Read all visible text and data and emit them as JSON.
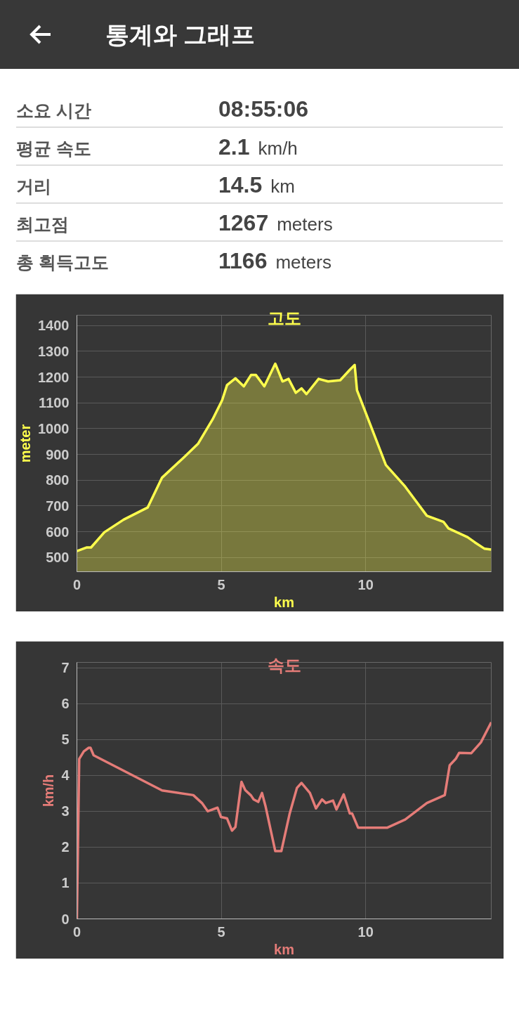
{
  "chart_data": [
    {
      "type": "other",
      "title": "통계와 그래프",
      "annotations": [
        "소요 시간",
        "08:55:06",
        "평균 속도",
        "2.1 km/h",
        "거리",
        "14.5 km",
        "최고점",
        "1267 meters",
        "총 획득고도",
        "1166 meters"
      ]
    },
    {
      "type": "area",
      "title": "고도",
      "xlabel": "km",
      "ylabel": "meter",
      "x": [
        0,
        0.33,
        0.49,
        0.95,
        1.62,
        2.45,
        2.95,
        3.7,
        4.2,
        4.7,
        5.03,
        5.2,
        5.49,
        5.78,
        6.03,
        6.2,
        6.49,
        6.87,
        7.12,
        7.33,
        7.58,
        7.78,
        7.95,
        8.37,
        8.7,
        9.12,
        9.45,
        9.62,
        9.7,
        10.7,
        11.37,
        12.12,
        12.7,
        12.87,
        13.53,
        13.78,
        14.12,
        14.35
      ],
      "series": [
        {
          "color": "#ffff4d",
          "values": [
            525,
            539,
            539,
            598,
            647,
            694,
            810,
            888,
            942,
            1036,
            1110,
            1169,
            1195,
            1164,
            1208,
            1208,
            1164,
            1252,
            1183,
            1193,
            1139,
            1156,
            1134,
            1193,
            1183,
            1188,
            1228,
            1247,
            1149,
            859,
            775,
            662,
            638,
            613,
            579,
            559,
            534,
            531
          ]
        }
      ],
      "xlim": [
        0,
        14.35
      ],
      "ylim": [
        445,
        1440
      ],
      "xticks": [
        0,
        5,
        10
      ],
      "yticks": [
        500,
        600,
        700,
        800,
        900,
        1000,
        1100,
        1200,
        1300,
        1400
      ],
      "grid": true
    },
    {
      "type": "line",
      "title": "속도",
      "xlabel": "km",
      "ylabel": "km/h",
      "x": [
        0,
        0.08,
        0.24,
        0.41,
        0.47,
        0.58,
        2.95,
        4.03,
        4.33,
        4.53,
        4.87,
        4.99,
        5.2,
        5.37,
        5.49,
        5.7,
        5.83,
        6.03,
        6.12,
        6.28,
        6.41,
        6.53,
        6.87,
        7.08,
        7.37,
        7.62,
        7.78,
        8.07,
        8.28,
        8.49,
        8.62,
        8.87,
        8.99,
        9.24,
        9.45,
        9.53,
        9.74,
        10.74,
        11.37,
        12.12,
        12.74,
        12.91,
        13.12,
        13.24,
        13.66,
        13.99,
        14.35
      ],
      "series": [
        {
          "color": "#e57c78",
          "values": [
            0,
            4.46,
            4.67,
            4.77,
            4.77,
            4.56,
            3.58,
            3.45,
            3.23,
            3.0,
            3.1,
            2.84,
            2.8,
            2.46,
            2.56,
            3.82,
            3.59,
            3.44,
            3.33,
            3.26,
            3.51,
            3.15,
            1.89,
            1.89,
            2.94,
            3.65,
            3.79,
            3.51,
            3.08,
            3.33,
            3.23,
            3.3,
            3.05,
            3.47,
            2.94,
            2.94,
            2.54,
            2.54,
            2.77,
            3.23,
            3.45,
            4.28,
            4.46,
            4.63,
            4.62,
            4.92,
            5.48
          ]
        }
      ],
      "xlim": [
        0,
        14.35
      ],
      "ylim": [
        0,
        7.15
      ],
      "xticks": [
        0,
        5,
        10
      ],
      "yticks": [
        0,
        1,
        2,
        3,
        4,
        5,
        6,
        7
      ],
      "grid": true
    }
  ]
}
